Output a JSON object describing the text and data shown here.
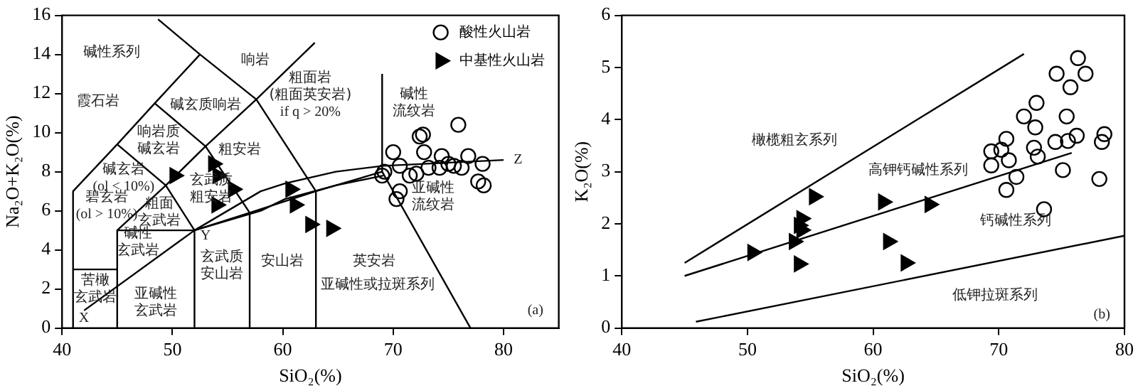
{
  "chart_data": [
    {
      "type": "scatter",
      "xlabel": "SiO₂(%)",
      "ylabel": "Na₂O+K₂O(%)",
      "xlim": [
        40,
        85
      ],
      "ylim": [
        0,
        16
      ],
      "xticks": [
        40,
        50,
        60,
        70,
        80
      ],
      "yticks": [
        0,
        2,
        4,
        6,
        8,
        10,
        12,
        14,
        16
      ],
      "grid": false,
      "legend": "top right",
      "series": [
        {
          "name": "酸性火山岩",
          "type": "scatter",
          "marker": "circle",
          "color": "#000000",
          "x": [
            75.9,
            72.7,
            72.4,
            70.0,
            72.8,
            74.4,
            76.8,
            78.1,
            70.6,
            69.2,
            69.0,
            71.5,
            73.2,
            74.2,
            75.0,
            75.5,
            76.2,
            77.7,
            78.2,
            70.6,
            70.3,
            72.1
          ],
          "values": [
            10.4,
            9.9,
            9.8,
            9.0,
            9.0,
            8.8,
            8.8,
            8.4,
            8.3,
            8.0,
            7.8,
            7.8,
            8.2,
            8.2,
            8.4,
            8.3,
            8.2,
            7.5,
            7.3,
            7.0,
            6.6,
            7.9
          ]
        },
        {
          "name": "中基性火山岩",
          "type": "scatter",
          "marker": "triangle",
          "color": "#000000",
          "x": [
            50.2,
            53.7,
            54.0,
            54.1,
            55.5,
            54.0,
            60.7,
            61.1,
            62.5,
            64.4
          ],
          "values": [
            7.8,
            8.4,
            null,
            7.8,
            7.1,
            6.3,
            7.1,
            6.3,
            5.3,
            5.1
          ]
        },
        {
          "type": "line",
          "marker": "none",
          "color": "#000000",
          "x": [
            41,
            41,
            45,
            48.4,
            52.5
          ],
          "values": [
            0,
            7,
            9.4,
            11.5,
            14
          ]
        },
        {
          "type": "line",
          "marker": "none",
          "color": "#000000",
          "x": [
            48.7,
            52.5,
            57.6,
            63,
            63
          ],
          "values": [
            15.8,
            14,
            11.7,
            7,
            0
          ]
        },
        {
          "type": "line",
          "marker": "none",
          "color": "#000000",
          "x": [
            45,
            49.4,
            53,
            57.6,
            62.9
          ],
          "values": [
            5,
            7.3,
            9.3,
            11.7,
            14.6
          ]
        },
        {
          "type": "line",
          "marker": "none",
          "color": "#000000",
          "x": [
            45,
            49.4,
            52
          ],
          "values": [
            9.4,
            7.3,
            5
          ]
        },
        {
          "type": "line",
          "marker": "none",
          "color": "#000000",
          "x": [
            45,
            45,
            52,
            57,
            63,
            69,
            77
          ],
          "values": [
            0,
            5,
            5,
            5.9,
            7,
            8,
            0
          ]
        },
        {
          "type": "line",
          "marker": "none",
          "color": "#000000",
          "x": [
            52,
            52
          ],
          "values": [
            0,
            5
          ]
        },
        {
          "type": "line",
          "marker": "none",
          "color": "#000000",
          "x": [
            57,
            57
          ],
          "values": [
            0,
            5.9
          ]
        },
        {
          "type": "line",
          "marker": "none",
          "color": "#000000",
          "x": [
            41,
            45
          ],
          "values": [
            3,
            3
          ]
        },
        {
          "type": "line",
          "marker": "none",
          "color": "#000000",
          "x": [
            48.4,
            53,
            57
          ],
          "values": [
            11.5,
            9.3,
            5.9
          ]
        },
        {
          "type": "line",
          "marker": "none",
          "color": "#000000",
          "x": [
            69,
            69
          ],
          "values": [
            8,
            13
          ]
        },
        {
          "type": "line",
          "marker": "none",
          "color": "#000000",
          "x": [
            42,
            52,
            58,
            60.2,
            64.8,
            69.1,
            80
          ],
          "values": [
            0.9,
            5,
            7.0,
            7.4,
            8.0,
            8.3,
            8.6
          ]
        },
        {
          "type": "line",
          "marker": "none",
          "color": "#000000",
          "x": [
            52,
            58,
            60.2,
            64.8,
            69.1
          ],
          "values": [
            5,
            6.0,
            6.6,
            7.3,
            7.8
          ]
        }
      ],
      "annotations": [
        "碱性系列",
        "霞石岩",
        "响岩",
        "碱玄质响岩",
        "响岩质碱玄岩",
        "粗安岩",
        "碱玄岩(ol < 10%)",
        "碧玄岩(ol > 10%)",
        "玄武质粗安岩",
        "粗面玄武岩",
        "碱性玄武岩",
        "苦橄玄武岩",
        "亚碱性玄武岩",
        "玄武质安山岩",
        "安山岩",
        "粗面岩(粗面英安岩) if q > 20%",
        "碱性流纹岩",
        "亚碱性流纹岩",
        "英安岩",
        "亚碱性或拉斑系列",
        "X",
        "Y",
        "Z",
        "(a)"
      ]
    },
    {
      "type": "scatter",
      "xlabel": "SiO₂(%)",
      "ylabel": "K₂O(%)",
      "xlim": [
        40,
        80
      ],
      "ylim": [
        0,
        6
      ],
      "xticks": [
        40,
        50,
        60,
        70,
        80
      ],
      "yticks": [
        0,
        1,
        2,
        3,
        4,
        5,
        6
      ],
      "grid": false,
      "series": [
        {
          "type": "scatter",
          "marker": "circle",
          "color": "#000000",
          "x": [
            76.3,
            74.6,
            76.9,
            75.7,
            72.0,
            73.0,
            75.4,
            72.9,
            70.6,
            69.4,
            70.2,
            76.2,
            78.4,
            74.5,
            75.5,
            72.8,
            73.1,
            69.4,
            78.2,
            75.1,
            71.4,
            70.6,
            78.0,
            73.6,
            70.8
          ],
          "values": [
            5.18,
            4.88,
            4.88,
            4.62,
            4.06,
            4.32,
            4.06,
            3.85,
            3.63,
            3.39,
            3.42,
            3.69,
            3.72,
            3.57,
            3.59,
            3.46,
            3.29,
            3.12,
            3.57,
            3.03,
            2.9,
            2.65,
            2.86,
            2.28,
            3.22
          ]
        },
        {
          "type": "scatter",
          "marker": "triangle",
          "color": "#000000",
          "x": [
            50.4,
            55.3,
            60.8,
            64.5,
            54.3,
            54.1,
            54.3,
            53.7,
            54.1,
            61.2,
            62.6
          ],
          "values": [
            1.45,
            2.52,
            2.42,
            2.37,
            2.1,
            1.97,
            1.88,
            1.66,
            1.23,
            1.66,
            1.25
          ]
        },
        {
          "type": "line",
          "marker": "none",
          "color": "#000000",
          "x": [
            45,
            72
          ],
          "values": [
            1.25,
            5.26
          ]
        },
        {
          "type": "line",
          "marker": "none",
          "color": "#000000",
          "x": [
            45,
            75.8
          ],
          "values": [
            1.0,
            3.36
          ]
        },
        {
          "type": "line",
          "marker": "none",
          "color": "#000000",
          "x": [
            45.9,
            80
          ],
          "values": [
            0.12,
            1.77
          ]
        }
      ],
      "annotations": [
        "橄榄粗玄系列",
        "高钾钙碱性系列",
        "钙碱性系列",
        "低钾拉斑系列",
        "(b)"
      ]
    }
  ]
}
